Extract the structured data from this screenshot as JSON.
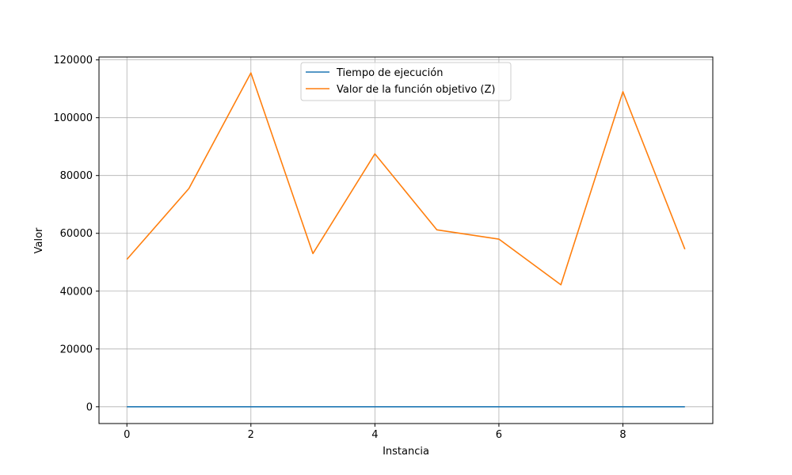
{
  "chart_data": {
    "type": "line",
    "title": "",
    "xlabel": "Instancia",
    "ylabel": "Valor",
    "xlim": [
      -0.45,
      9.45
    ],
    "ylim": [
      -5800,
      121000
    ],
    "x_ticks": [
      0,
      2,
      4,
      6,
      8
    ],
    "y_ticks": [
      0,
      20000,
      40000,
      60000,
      80000,
      100000,
      120000
    ],
    "grid": true,
    "legend_position": "top-center",
    "x": [
      0,
      1,
      2,
      3,
      4,
      5,
      6,
      7,
      8,
      9
    ],
    "series": [
      {
        "name": "Tiempo de ejecución",
        "color": "#1f77b4",
        "values": [
          0.8,
          1.1,
          1.3,
          0.9,
          1.2,
          1.0,
          1.1,
          0.7,
          1.4,
          1.0
        ]
      },
      {
        "name": "Valor de la función objetivo (Z)",
        "color": "#ff7f0e",
        "values": [
          51000,
          75500,
          115500,
          53000,
          87500,
          61200,
          58000,
          42200,
          109000,
          54500
        ]
      }
    ]
  }
}
